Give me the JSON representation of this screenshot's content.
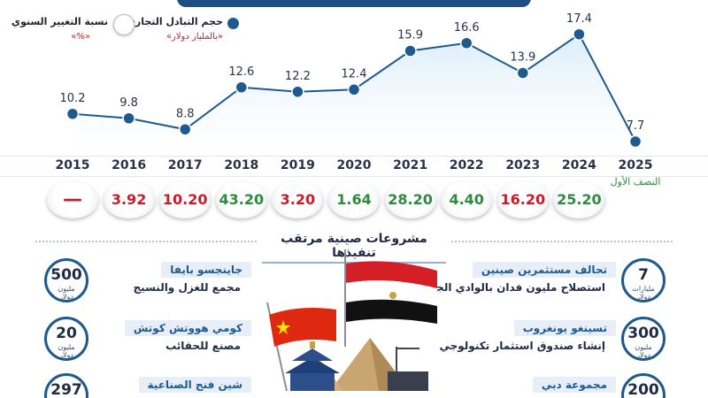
{
  "banner": {
    "title": ""
  },
  "legend": {
    "trade_volume": {
      "label": "حجم التبادل التجاري",
      "unit": "«بالمليار دولار»",
      "color": "#1f5a8f"
    },
    "annual_change": {
      "label": "نسبة التغيير السنوي",
      "unit": "«%»"
    }
  },
  "chart_data": {
    "type": "area",
    "title": "",
    "xlabel": "",
    "ylabel": "",
    "x": [
      "2015",
      "2016",
      "2017",
      "2018",
      "2019",
      "2020",
      "2021",
      "2022",
      "2023",
      "2024",
      "2025"
    ],
    "series": [
      {
        "name": "حجم التبادل التجاري",
        "values": [
          10.2,
          9.8,
          8.8,
          12.6,
          12.2,
          12.4,
          15.9,
          16.6,
          13.9,
          17.4,
          7.7
        ]
      }
    ],
    "x_notes": {
      "2025": "النصف الأول"
    },
    "ylim": [
      0,
      20
    ],
    "grid": false,
    "annual_change": [
      {
        "year": "2015",
        "value": "—",
        "tone": "dash"
      },
      {
        "year": "2016",
        "value": "3.92",
        "tone": "red"
      },
      {
        "year": "2017",
        "value": "10.20",
        "tone": "red"
      },
      {
        "year": "2018",
        "value": "43.20",
        "tone": "green"
      },
      {
        "year": "2019",
        "value": "3.20",
        "tone": "red"
      },
      {
        "year": "2020",
        "value": "1.64",
        "tone": "green"
      },
      {
        "year": "2021",
        "value": "28.20",
        "tone": "green"
      },
      {
        "year": "2022",
        "value": "4.40",
        "tone": "green"
      },
      {
        "year": "2023",
        "value": "16.20",
        "tone": "red"
      },
      {
        "year": "2024",
        "value": "25.20",
        "tone": "green"
      },
      {
        "year": "2025",
        "value": "",
        "tone": "none"
      }
    ],
    "colors": {
      "line": "#1f5a8f",
      "fill": "#d9ecfa",
      "up": "#2e8b3c",
      "down": "#c21f2a"
    }
  },
  "projects": {
    "title": "مشروعات صينية مرتقب تنفيذها",
    "left": [
      {
        "name": "جاينجسو بايفا",
        "desc": "مجمع للغزل والنسيج",
        "amount": "500",
        "unit1": "مليون",
        "unit2": "دولار"
      },
      {
        "name": "كومي هووتش كوتش",
        "desc": "مصنع للحقائب",
        "amount": "20",
        "unit1": "مليون",
        "unit2": "دولار"
      },
      {
        "name": "شين فنج الصناعية",
        "desc": "",
        "amount": "297",
        "unit1": "",
        "unit2": ""
      }
    ],
    "right": [
      {
        "name": "تحالف مستثمرين صينين",
        "desc": "استصلاح مليون فدان بالوادي الجديد",
        "amount": "7",
        "unit1": "مليارات",
        "unit2": "دولار"
      },
      {
        "name": "تسينغو يونغروب",
        "desc": "إنشاء صندوق استثمار تكنولوجي",
        "amount": "300",
        "unit1": "مليون",
        "unit2": "دولار"
      },
      {
        "name": "مجموعة دبي",
        "desc": "",
        "amount": "200",
        "unit1": "",
        "unit2": ""
      }
    ]
  }
}
